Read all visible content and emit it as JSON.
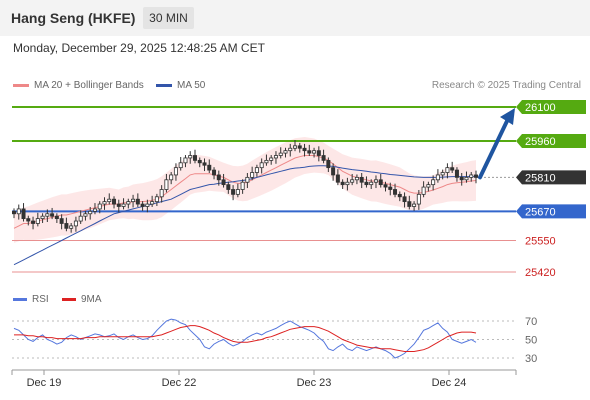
{
  "header": {
    "title": "Hang Seng (HKFE)",
    "timeframe": "30 MIN",
    "datetime": "Monday, December 29, 2025 12:48:25 AM CET"
  },
  "legend": {
    "item1": "MA 20 + Bollinger Bands",
    "item2": "MA 50",
    "credit": "Research © 2025 Trading Central"
  },
  "rsi_legend": {
    "item1": "RSI",
    "item2": "9MA"
  },
  "colors": {
    "resistance": "#55aa11",
    "support": "#3366cc",
    "current": "#333333",
    "minor_support": "#cc2222",
    "ma20": "#ee8888",
    "ma50": "#3355aa",
    "bollinger_fill": "#fde3e3",
    "rsi": "#5577dd",
    "rsi_ma": "#dd2222",
    "arrow": "#1f55a0"
  },
  "chart_data": [
    {
      "type": "candlestick",
      "instrument": "Hang Seng (HKFE)",
      "interval": "30 MIN",
      "x_ticks": [
        "Dec 19",
        "Dec 22",
        "Dec 23",
        "Dec 24"
      ],
      "ylim": [
        25360,
        26140
      ],
      "levels": [
        {
          "value": 26100,
          "label": "26100",
          "role": "resistance"
        },
        {
          "value": 25960,
          "label": "25960",
          "role": "resistance"
        },
        {
          "value": 25810,
          "label": "25810",
          "role": "current"
        },
        {
          "value": 25670,
          "label": "25670",
          "role": "support"
        },
        {
          "value": 25550,
          "label": "25550",
          "role": "minor_support"
        },
        {
          "value": 25420,
          "label": "25420",
          "role": "minor_support"
        }
      ],
      "close_path": [
        25660,
        25680,
        25640,
        25630,
        25620,
        25640,
        25650,
        25660,
        25650,
        25640,
        25620,
        25600,
        25610,
        25630,
        25650,
        25660,
        25670,
        25680,
        25700,
        25710,
        25720,
        25700,
        25690,
        25700,
        25710,
        25720,
        25700,
        25690,
        25700,
        25710,
        25730,
        25760,
        25800,
        25820,
        25850,
        25870,
        25890,
        25900,
        25880,
        25870,
        25860,
        25840,
        25820,
        25800,
        25780,
        25760,
        25740,
        25760,
        25790,
        25810,
        25830,
        25850,
        25870,
        25880,
        25890,
        25900,
        25910,
        25920,
        25930,
        25940,
        25930,
        25920,
        25910,
        25920,
        25900,
        25880,
        25850,
        25820,
        25790,
        25780,
        25790,
        25800,
        25810,
        25790,
        25780,
        25790,
        25800,
        25780,
        25770,
        25760,
        25740,
        25730,
        25710,
        25690,
        25700,
        25740,
        25770,
        25780,
        25800,
        25820,
        25830,
        25850,
        25840,
        25810,
        25800,
        25810,
        25820,
        25810
      ],
      "ma20": [
        25600,
        25610,
        25620,
        25620,
        25625,
        25630,
        25635,
        25640,
        25645,
        25650,
        25655,
        25655,
        25660,
        25665,
        25670,
        25675,
        25680,
        25685,
        25690,
        25695,
        25700,
        25700,
        25700,
        25705,
        25705,
        25710,
        25710,
        25710,
        25712,
        25715,
        25720,
        25730,
        25745,
        25760,
        25775,
        25790,
        25805,
        25820,
        25825,
        25825,
        25825,
        25825,
        25820,
        25815,
        25810,
        25800,
        25790,
        25785,
        25785,
        25790,
        25800,
        25810,
        25820,
        25830,
        25840,
        25850,
        25860,
        25870,
        25880,
        25890,
        25895,
        25900,
        25900,
        25900,
        25895,
        25890,
        25880,
        25865,
        25850,
        25835,
        25825,
        25815,
        25810,
        25805,
        25800,
        25795,
        25795,
        25790,
        25785,
        25780,
        25775,
        25770,
        25760,
        25750,
        25745,
        25745,
        25748,
        25752,
        25758,
        25765,
        25772,
        25780,
        25785,
        25788,
        25790,
        25792,
        25795,
        25797
      ],
      "ma50": [
        25450,
        25460,
        25470,
        25480,
        25490,
        25500,
        25510,
        25520,
        25530,
        25540,
        25550,
        25560,
        25570,
        25580,
        25590,
        25600,
        25610,
        25620,
        25630,
        25640,
        25650,
        25660,
        25665,
        25670,
        25675,
        25680,
        25685,
        25690,
        25695,
        25700,
        25705,
        25710,
        25715,
        25720,
        25730,
        25740,
        25750,
        25760,
        25765,
        25770,
        25775,
        25780,
        25782,
        25785,
        25788,
        25790,
        25792,
        25795,
        25797,
        25800,
        25805,
        25810,
        25815,
        25820,
        25825,
        25830,
        25835,
        25840,
        25845,
        25848,
        25850,
        25852,
        25855,
        25857,
        25858,
        25858,
        25857,
        25855,
        25852,
        25848,
        25845,
        25842,
        25840,
        25838,
        25835,
        25832,
        25830,
        25827,
        25825,
        25822,
        25820,
        25818,
        25816,
        25814,
        25812,
        25811,
        25810,
        25810,
        25810,
        25810,
        25811,
        25812,
        25813,
        25813,
        25813,
        25813,
        25813,
        25813
      ],
      "forecast": {
        "from": 25810,
        "to": 26100,
        "direction": "up"
      }
    },
    {
      "type": "line",
      "indicator": "RSI",
      "ylim": [
        20,
        80
      ],
      "y_ticks": [
        70,
        50,
        30
      ],
      "series": [
        {
          "name": "RSI",
          "values": [
            62,
            60,
            55,
            50,
            48,
            52,
            55,
            50,
            48,
            45,
            47,
            52,
            55,
            53,
            50,
            52,
            54,
            56,
            55,
            53,
            54,
            56,
            52,
            50,
            53,
            55,
            52,
            50,
            51,
            54,
            60,
            65,
            70,
            72,
            71,
            68,
            66,
            60,
            55,
            50,
            42,
            40,
            45,
            48,
            50,
            46,
            43,
            45,
            48,
            52,
            55,
            57,
            55,
            58,
            60,
            62,
            65,
            68,
            70,
            67,
            64,
            62,
            60,
            57,
            52,
            48,
            40,
            38,
            42,
            45,
            40,
            38,
            42,
            40,
            38,
            40,
            42,
            40,
            38,
            35,
            30,
            32,
            35,
            40,
            45,
            52,
            60,
            62,
            65,
            68,
            62,
            58,
            50,
            48,
            46,
            48,
            50,
            47
          ]
        },
        {
          "name": "9MA",
          "values": [
            55,
            55,
            55,
            54,
            54,
            53,
            53,
            52,
            52,
            51,
            51,
            51,
            51,
            51,
            51,
            52,
            52,
            52,
            53,
            53,
            53,
            53,
            53,
            53,
            53,
            53,
            53,
            53,
            53,
            53,
            54,
            55,
            57,
            59,
            61,
            63,
            64,
            65,
            65,
            64,
            62,
            60,
            57,
            55,
            52,
            50,
            48,
            47,
            47,
            47,
            48,
            49,
            50,
            52,
            53,
            55,
            57,
            59,
            61,
            62,
            63,
            64,
            64,
            64,
            63,
            61,
            59,
            56,
            53,
            50,
            48,
            46,
            44,
            43,
            42,
            41,
            41,
            40,
            40,
            40,
            39,
            38,
            37,
            37,
            37,
            38,
            39,
            41,
            44,
            47,
            50,
            53,
            55,
            57,
            58,
            58,
            58,
            57
          ]
        }
      ]
    }
  ]
}
